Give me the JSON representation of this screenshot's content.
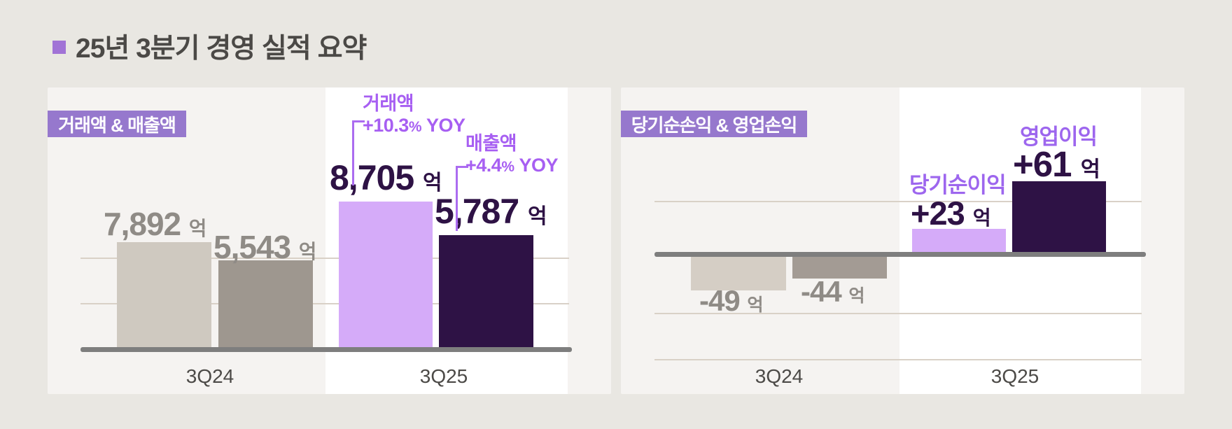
{
  "title": {
    "text": "25년 3분기 경영 실적 요약"
  },
  "colors": {
    "page_bg": "#e9e7e2",
    "panel_bg": "#f5f3f1",
    "highlight_band": "#ffffff",
    "badge_purple": "#9678cd",
    "title_bullet_purple": "#a173d6",
    "annotation_purple": "#a75ff2",
    "dark_purple": "#2e1245",
    "light_purple": "#d5abf9",
    "beige_bar": "#cfc9c0",
    "gray_bar": "#9e978f",
    "value_gray": "#8f8b86",
    "axis_gray": "#7e7e7e",
    "gridline": "#d9d1c7"
  },
  "chart_data": [
    {
      "type": "bar",
      "title": "거래액 & 매출액",
      "categories": [
        "3Q24",
        "3Q25"
      ],
      "series": [
        {
          "name": "거래액",
          "values": [
            7892,
            8705
          ],
          "colors": [
            "#cfc9c0",
            "#d5abf9"
          ]
        },
        {
          "name": "매출액",
          "values": [
            5543,
            5787
          ],
          "colors": [
            "#9e978f",
            "#2e1245"
          ]
        }
      ],
      "unit": "억",
      "annotations": [
        "거래액 +10.3% YOY",
        "매출액 +4.4% YOY"
      ],
      "legend_position": "none",
      "grid": true
    },
    {
      "type": "bar",
      "title": "당기순손익 & 영업손익",
      "categories": [
        "3Q24",
        "3Q25"
      ],
      "series": [
        {
          "name": "당기순이익",
          "values": [
            -49,
            23
          ],
          "colors": [
            "#d5cec5",
            "#d5abf9"
          ]
        },
        {
          "name": "영업이익",
          "values": [
            -44,
            61
          ],
          "colors": [
            "#a39b94",
            "#2e1245"
          ]
        }
      ],
      "unit": "억",
      "annotations": [
        "당기순이익 +23 억",
        "영업이익 +61 억"
      ],
      "legend_position": "none",
      "grid": true
    }
  ],
  "left_chart": {
    "badge": "거래액 & 매출액",
    "annotation_gmv": {
      "line1": "거래액",
      "line2": "+10.3",
      "pct": "%",
      "yoy": " YOY"
    },
    "annotation_rev": {
      "line1": "매출액",
      "line2": "+4.4",
      "pct": "%",
      "yoy": " YOY"
    },
    "values": {
      "gmv_3q24": {
        "num": "7,892",
        "unit": "억"
      },
      "rev_3q24": {
        "num": "5,543",
        "unit": "억"
      },
      "gmv_3q25": {
        "num": "8,705",
        "unit": "억"
      },
      "rev_3q25": {
        "num": "5,787",
        "unit": "억"
      }
    },
    "x_labels": [
      "3Q24",
      "3Q25"
    ]
  },
  "right_chart": {
    "badge": "당기순손익 & 영업손익",
    "series_labels": {
      "net": "당기순이익",
      "op": "영업이익"
    },
    "values": {
      "net_3q24": {
        "num": "-49",
        "unit": "억"
      },
      "op_3q24": {
        "num": "-44",
        "unit": "억"
      },
      "net_3q25": {
        "num": "+23",
        "unit": "억"
      },
      "op_3q25": {
        "num": "+61",
        "unit": "억"
      }
    },
    "x_labels": [
      "3Q24",
      "3Q25"
    ]
  }
}
